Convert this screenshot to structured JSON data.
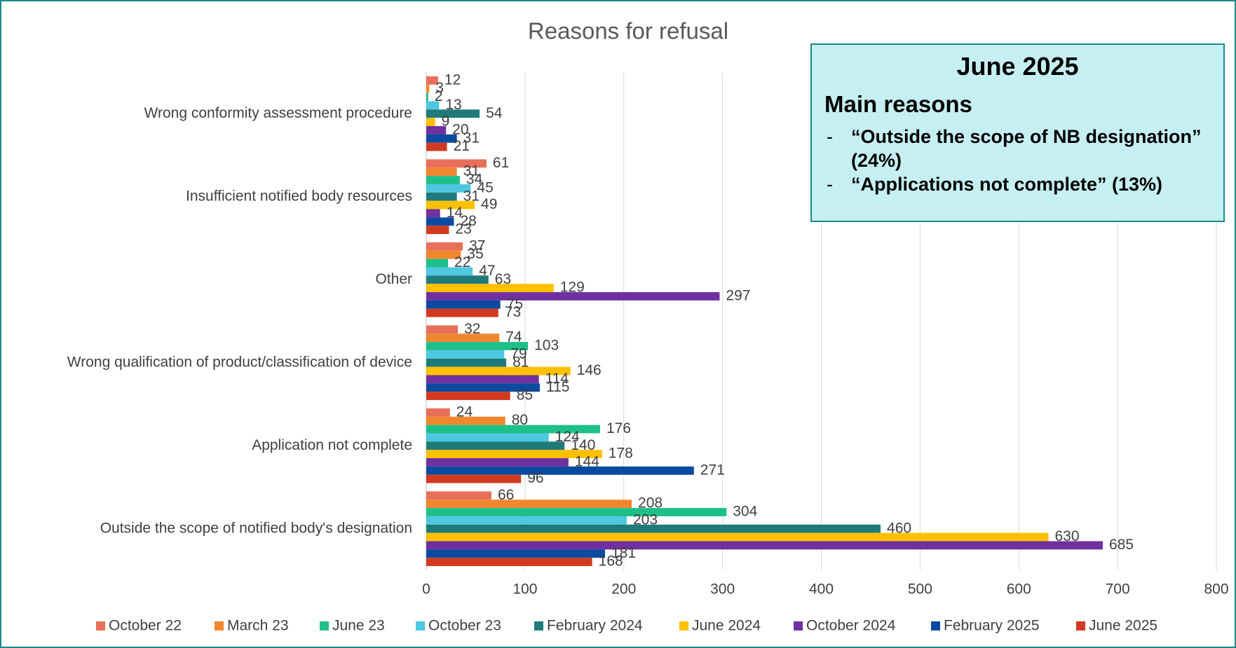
{
  "chart_data": {
    "type": "hbar",
    "title": "Reasons for refusal",
    "categories": [
      "Wrong conformity assessment procedure",
      "Insufficient notified body resources",
      "Other",
      "Wrong qualification of product/classification of device",
      "Application not complete",
      "Outside the scope of notified body's designation"
    ],
    "series": [
      {
        "name": "October 22",
        "color": "#e8705a",
        "values": [
          12,
          61,
          37,
          32,
          24,
          66
        ]
      },
      {
        "name": "March 23",
        "color": "#f0872e",
        "values": [
          3,
          31,
          35,
          74,
          80,
          208
        ]
      },
      {
        "name": "June 23",
        "color": "#1ec08a",
        "values": [
          2,
          34,
          22,
          103,
          176,
          304
        ]
      },
      {
        "name": "October 23",
        "color": "#4ec8e0",
        "values": [
          13,
          45,
          47,
          79,
          124,
          203
        ]
      },
      {
        "name": "February 2024",
        "color": "#1f7a7a",
        "values": [
          54,
          31,
          63,
          81,
          140,
          460
        ]
      },
      {
        "name": "June 2024",
        "color": "#ffc000",
        "values": [
          9,
          49,
          129,
          146,
          178,
          630
        ]
      },
      {
        "name": "October 2024",
        "color": "#7030a0",
        "values": [
          20,
          14,
          297,
          114,
          144,
          685
        ]
      },
      {
        "name": "February 2025",
        "color": "#0a4aa0",
        "values": [
          31,
          28,
          75,
          115,
          271,
          181
        ]
      },
      {
        "name": "June 2025",
        "color": "#d03a20",
        "values": [
          21,
          23,
          73,
          85,
          96,
          168
        ]
      }
    ],
    "xlim": [
      0,
      800
    ],
    "xticks": [
      0,
      100,
      200,
      300,
      400,
      500,
      600,
      700,
      800
    ],
    "grid": true,
    "legend": "bottom",
    "annotation": {
      "title": "June 2025",
      "subtitle": "Main reasons",
      "items": [
        "“Outside the scope of NB designation” (24%)",
        "“Applications not complete” (13%)"
      ]
    }
  }
}
